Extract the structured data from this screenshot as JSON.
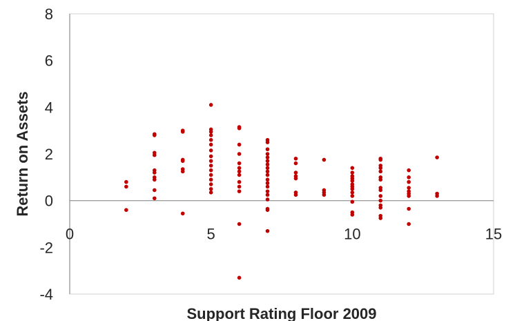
{
  "chart_data": {
    "type": "scatter",
    "title": "",
    "xlabel": "Support Rating Floor 2009",
    "ylabel": "Return on Assets",
    "xlim": [
      0,
      15
    ],
    "ylim": [
      -4,
      8
    ],
    "x_ticks": [
      "0",
      "5",
      "10",
      "15"
    ],
    "y_ticks": [
      "-4",
      "-2",
      "0",
      "2",
      "4",
      "6",
      "8"
    ],
    "grid": false,
    "legend": "none",
    "marker_color": "#c00000",
    "series": [
      {
        "points": [
          [
            2,
            0.8
          ],
          [
            2,
            0.6
          ],
          [
            2,
            -0.4
          ],
          [
            3,
            2.85
          ],
          [
            3,
            2.8
          ],
          [
            3,
            2.05
          ],
          [
            3,
            1.95
          ],
          [
            3,
            1.3
          ],
          [
            3,
            1.2
          ],
          [
            3,
            1.0
          ],
          [
            3,
            0.9
          ],
          [
            3,
            0.45
          ],
          [
            3,
            0.1
          ],
          [
            4,
            3.0
          ],
          [
            4,
            2.95
          ],
          [
            4,
            1.75
          ],
          [
            4,
            1.7
          ],
          [
            4,
            1.35
          ],
          [
            4,
            1.25
          ],
          [
            4,
            -0.55
          ],
          [
            5,
            4.1
          ],
          [
            5,
            3.05
          ],
          [
            5,
            2.95
          ],
          [
            5,
            2.8
          ],
          [
            5,
            2.6
          ],
          [
            5,
            2.4
          ],
          [
            5,
            2.15
          ],
          [
            5,
            1.9
          ],
          [
            5,
            1.7
          ],
          [
            5,
            1.5
          ],
          [
            5,
            1.3
          ],
          [
            5,
            1.1
          ],
          [
            5,
            0.9
          ],
          [
            5,
            0.7
          ],
          [
            5,
            0.5
          ],
          [
            5,
            0.35
          ],
          [
            6,
            3.15
          ],
          [
            6,
            3.1
          ],
          [
            6,
            2.4
          ],
          [
            6,
            2.0
          ],
          [
            6,
            1.6
          ],
          [
            6,
            1.4
          ],
          [
            6,
            1.25
          ],
          [
            6,
            1.1
          ],
          [
            6,
            0.8
          ],
          [
            6,
            0.6
          ],
          [
            6,
            0.4
          ],
          [
            6,
            -1.0
          ],
          [
            6,
            -3.3
          ],
          [
            7,
            2.6
          ],
          [
            7,
            2.5
          ],
          [
            7,
            2.2
          ],
          [
            7,
            2.0
          ],
          [
            7,
            1.85
          ],
          [
            7,
            1.7
          ],
          [
            7,
            1.55
          ],
          [
            7,
            1.4
          ],
          [
            7,
            1.25
          ],
          [
            7,
            1.1
          ],
          [
            7,
            0.9
          ],
          [
            7,
            0.75
          ],
          [
            7,
            0.6
          ],
          [
            7,
            0.4
          ],
          [
            7,
            0.25
          ],
          [
            7,
            0.05
          ],
          [
            7,
            -0.35
          ],
          [
            7,
            -0.4
          ],
          [
            7,
            -1.3
          ],
          [
            8,
            1.8
          ],
          [
            8,
            1.6
          ],
          [
            8,
            1.2
          ],
          [
            8,
            1.05
          ],
          [
            8,
            0.95
          ],
          [
            8,
            0.35
          ],
          [
            8,
            0.25
          ],
          [
            9,
            1.75
          ],
          [
            9,
            0.45
          ],
          [
            9,
            0.35
          ],
          [
            9,
            0.25
          ],
          [
            10,
            1.4
          ],
          [
            10,
            1.2
          ],
          [
            10,
            1.05
          ],
          [
            10,
            0.95
          ],
          [
            10,
            0.85
          ],
          [
            10,
            0.7
          ],
          [
            10,
            0.6
          ],
          [
            10,
            0.5
          ],
          [
            10,
            0.35
          ],
          [
            10,
            0.2
          ],
          [
            10,
            -0.05
          ],
          [
            10,
            -0.5
          ],
          [
            10,
            -0.6
          ],
          [
            11,
            1.8
          ],
          [
            11,
            1.75
          ],
          [
            11,
            1.5
          ],
          [
            11,
            1.4
          ],
          [
            11,
            1.25
          ],
          [
            11,
            1.0
          ],
          [
            11,
            0.9
          ],
          [
            11,
            0.55
          ],
          [
            11,
            0.45
          ],
          [
            11,
            0.2
          ],
          [
            11,
            0.0
          ],
          [
            11,
            -0.2
          ],
          [
            11,
            -0.3
          ],
          [
            11,
            -0.65
          ],
          [
            11,
            -0.75
          ],
          [
            12,
            1.3
          ],
          [
            12,
            1.0
          ],
          [
            12,
            0.8
          ],
          [
            12,
            0.55
          ],
          [
            12,
            0.4
          ],
          [
            12,
            0.3
          ],
          [
            12,
            0.2
          ],
          [
            12,
            -0.35
          ],
          [
            12,
            -1.0
          ],
          [
            13,
            1.85
          ],
          [
            13,
            0.3
          ],
          [
            13,
            0.2
          ]
        ]
      }
    ]
  }
}
